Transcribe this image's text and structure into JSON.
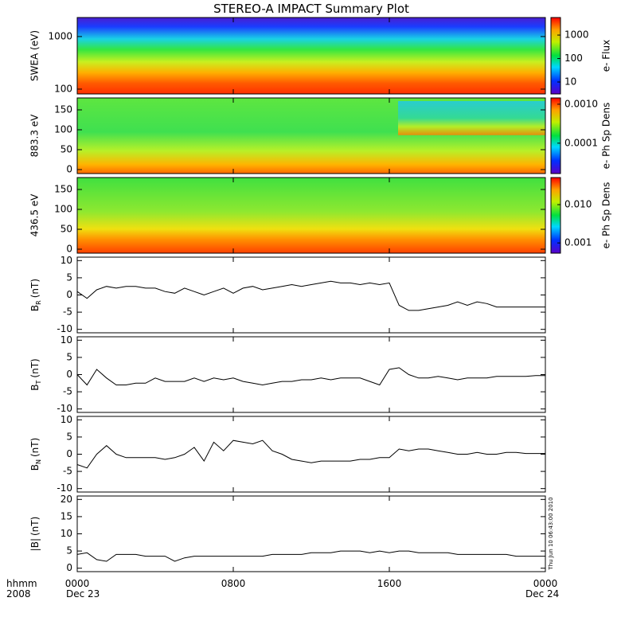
{
  "title": "STEREO-A IMPACT Summary Plot",
  "side_note": "Thu Jun 10 06:43:00 2010",
  "x_axis": {
    "row1_label": "hhmm",
    "row2_label": "2008",
    "start_date": "Dec 23",
    "end_date": "Dec 24"
  },
  "chart_data": [
    {
      "type": "heatmap",
      "ylabel": "SWEA (eV)",
      "log_y": true,
      "ylim": [
        81,
        2300
      ],
      "yticks": [
        100,
        1000
      ],
      "colorbar_label": "e- Flux",
      "clog": true,
      "clim": [
        3.1,
        5600
      ],
      "cticks": [
        10,
        100,
        1000
      ],
      "xlim": [
        0,
        24
      ]
    },
    {
      "type": "heatmap",
      "ylabel": "883.3 eV",
      "ylim": [
        -10,
        180
      ],
      "yticks": [
        0,
        50,
        100,
        150
      ],
      "colorbar_label": "e- Ph Sp Dens",
      "clog": true,
      "clim": [
        1.66e-05,
        0.00145
      ],
      "cticks": [
        {
          "value": 0.001,
          "label": "0.0010"
        },
        0.0001
      ],
      "xlim": [
        0,
        24
      ]
    },
    {
      "type": "heatmap",
      "ylabel": "436.5 eV",
      "ylim": [
        -10,
        180
      ],
      "yticks": [
        0,
        50,
        100,
        150
      ],
      "colorbar_label": "e- Ph Sp Dens",
      "clog": true,
      "clim": [
        0.00054,
        0.051
      ],
      "cticks": [
        {
          "value": 0.01,
          "label": "0.010"
        },
        0.001
      ],
      "xlim": [
        0,
        24
      ]
    },
    {
      "type": "line",
      "ylabel_main": "B",
      "ylabel_sub": "R",
      "ylabel_unit": "(nT)",
      "ylim": [
        -11,
        11
      ],
      "yticks": [
        -10,
        -5,
        0,
        5,
        10
      ],
      "xlim": [
        0,
        24
      ],
      "color": "#000000",
      "x": [
        0,
        0.5,
        1,
        1.5,
        2,
        2.5,
        3,
        3.5,
        4,
        4.5,
        5,
        5.5,
        6,
        6.5,
        7,
        7.5,
        8,
        8.5,
        9,
        9.5,
        10,
        10.5,
        11,
        11.5,
        12,
        12.5,
        13,
        13.5,
        14,
        14.5,
        15,
        15.5,
        16,
        16.5,
        17,
        17.5,
        18,
        18.5,
        19,
        19.5,
        20,
        20.5,
        21,
        21.5,
        22,
        22.5,
        23,
        23.5,
        24
      ],
      "values": [
        1,
        -1,
        1.5,
        2.5,
        2,
        2.5,
        2.5,
        2,
        2,
        1,
        0.5,
        2,
        1,
        0,
        1,
        2,
        0.5,
        2,
        2.5,
        1.5,
        2,
        2.5,
        3,
        2.5,
        3,
        3.5,
        4,
        3.5,
        3.5,
        3,
        3.5,
        3,
        3.5,
        -3,
        -4.5,
        -4.5,
        -4,
        -3.5,
        -3,
        -2,
        -3,
        -2,
        -2.5,
        -3.5,
        -3.5,
        -3.5,
        -3.5,
        -3.5,
        -3.5
      ]
    },
    {
      "type": "line",
      "ylabel_main": "B",
      "ylabel_sub": "T",
      "ylabel_unit": "(nT)",
      "ylim": [
        -11,
        11
      ],
      "yticks": [
        -10,
        -5,
        0,
        5,
        10
      ],
      "xlim": [
        0,
        24
      ],
      "color": "#000000",
      "x": [
        0,
        0.5,
        1,
        1.5,
        2,
        2.5,
        3,
        3.5,
        4,
        4.5,
        5,
        5.5,
        6,
        6.5,
        7,
        7.5,
        8,
        8.5,
        9,
        9.5,
        10,
        10.5,
        11,
        11.5,
        12,
        12.5,
        13,
        13.5,
        14,
        14.5,
        15,
        15.5,
        16,
        16.5,
        17,
        17.5,
        18,
        18.5,
        19,
        19.5,
        20,
        20.5,
        21,
        21.5,
        22,
        22.5,
        23,
        23.5,
        24
      ],
      "values": [
        0,
        -3,
        1.5,
        -1,
        -3,
        -3,
        -2.5,
        -2.5,
        -1,
        -2,
        -2,
        -2,
        -1,
        -2,
        -1,
        -1.5,
        -1,
        -2,
        -2.5,
        -3,
        -2.5,
        -2,
        -2,
        -1.5,
        -1.5,
        -1,
        -1.5,
        -1,
        -1,
        -1,
        -2,
        -3,
        1.5,
        2,
        0,
        -1,
        -1,
        -0.5,
        -1,
        -1.5,
        -1,
        -1,
        -1,
        -0.5,
        -0.5,
        -0.5,
        -0.5,
        -0.3,
        -0.3
      ]
    },
    {
      "type": "line",
      "ylabel_main": "B",
      "ylabel_sub": "N",
      "ylabel_unit": "(nT)",
      "ylim": [
        -11,
        11
      ],
      "yticks": [
        -10,
        -5,
        0,
        5,
        10
      ],
      "xlim": [
        0,
        24
      ],
      "color": "#000000",
      "x": [
        0,
        0.5,
        1,
        1.5,
        2,
        2.5,
        3,
        3.5,
        4,
        4.5,
        5,
        5.5,
        6,
        6.5,
        7,
        7.5,
        8,
        8.5,
        9,
        9.5,
        10,
        10.5,
        11,
        11.5,
        12,
        12.5,
        13,
        13.5,
        14,
        14.5,
        15,
        15.5,
        16,
        16.5,
        17,
        17.5,
        18,
        18.5,
        19,
        19.5,
        20,
        20.5,
        21,
        21.5,
        22,
        22.5,
        23,
        23.5,
        24
      ],
      "values": [
        -3,
        -4,
        0,
        2.5,
        0,
        -1,
        -1,
        -1,
        -1,
        -1.5,
        -1,
        0,
        2,
        -2,
        3.5,
        1,
        4,
        3.5,
        3,
        4,
        1,
        0,
        -1.5,
        -2,
        -2.5,
        -2,
        -2,
        -2,
        -2,
        -1.5,
        -1.5,
        -1,
        -1,
        1.5,
        1,
        1.5,
        1.5,
        1,
        0.5,
        0,
        0,
        0.5,
        0,
        0,
        0.5,
        0.5,
        0.2,
        0.2,
        0.2
      ]
    },
    {
      "type": "line",
      "ylabel_main": "|B|",
      "ylabel_unit": "(nT)",
      "ylim": [
        -1,
        21
      ],
      "yticks": [
        0,
        5,
        10,
        15,
        20
      ],
      "xlim": [
        0,
        24
      ],
      "color": "#000000",
      "xticks": [
        {
          "value": 0,
          "label": "0000"
        },
        {
          "value": 8,
          "label": "0800"
        },
        {
          "value": 16,
          "label": "1600"
        },
        {
          "value": 24,
          "label": "0000"
        }
      ],
      "x": [
        0,
        0.5,
        1,
        1.5,
        2,
        2.5,
        3,
        3.5,
        4,
        4.5,
        5,
        5.5,
        6,
        6.5,
        7,
        7.5,
        8,
        8.5,
        9,
        9.5,
        10,
        10.5,
        11,
        11.5,
        12,
        12.5,
        13,
        13.5,
        14,
        14.5,
        15,
        15.5,
        16,
        16.5,
        17,
        17.5,
        18,
        18.5,
        19,
        19.5,
        20,
        20.5,
        21,
        21.5,
        22,
        22.5,
        23,
        23.5,
        24
      ],
      "values": [
        4,
        4.5,
        2.5,
        2,
        4,
        4,
        4,
        3.5,
        3.5,
        3.5,
        2,
        3,
        3.5,
        3.5,
        3.5,
        3.5,
        3.5,
        3.5,
        3.5,
        3.5,
        4,
        4,
        4,
        4,
        4.5,
        4.5,
        4.5,
        5,
        5,
        5,
        4.5,
        5,
        4.5,
        5,
        5,
        4.5,
        4.5,
        4.5,
        4.5,
        4,
        4,
        4,
        4,
        4,
        4,
        3.5,
        3.5,
        3.5,
        3.5
      ]
    }
  ]
}
